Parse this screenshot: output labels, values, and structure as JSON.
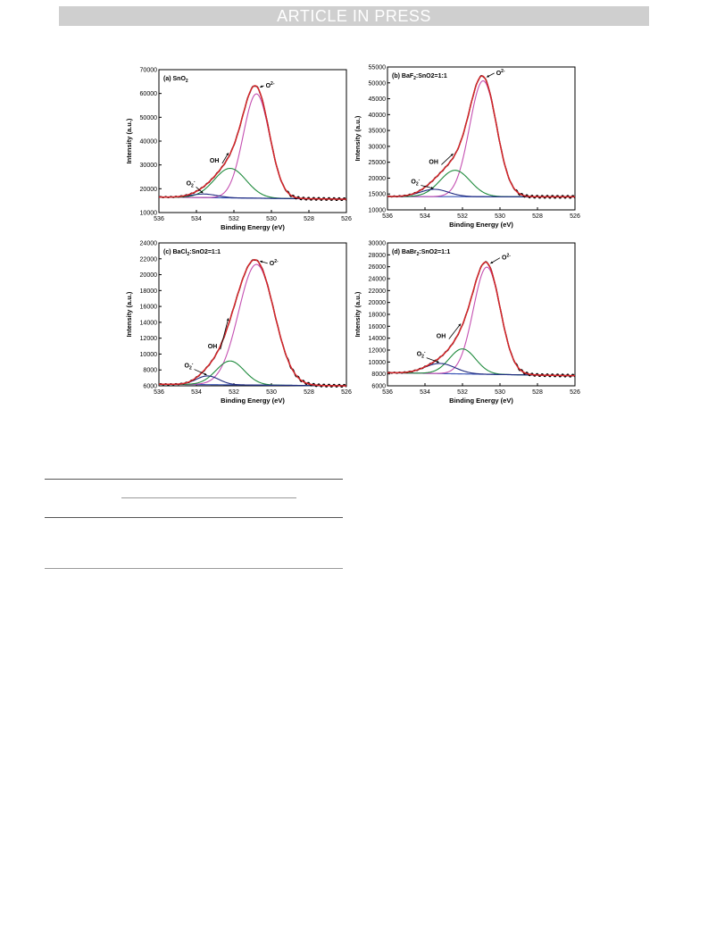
{
  "banner": {
    "text": "ARTICLE IN PRESS"
  },
  "colors": {
    "raw": "#000000",
    "fit": "#d7262a",
    "o2lattice": "#c44fb1",
    "oh": "#1e8a3c",
    "o2ads": "#1f2a80",
    "background": "#3a55b5"
  },
  "chart_data": [
    {
      "type": "line",
      "panel_label": "(a) SnO",
      "label_sub": "2",
      "label_tail": "",
      "xlabel": "Binding Energy (eV)",
      "ylabel": "Intensity (a.u.)",
      "xlim": [
        536,
        526
      ],
      "xticks": [
        536,
        534,
        532,
        530,
        528,
        526
      ],
      "ylim": [
        10000,
        70000
      ],
      "yticks": [
        10000,
        20000,
        30000,
        40000,
        50000,
        60000,
        70000
      ],
      "baseline": [
        16500,
        15600
      ],
      "peaks": [
        {
          "name": "O2-",
          "center": 530.8,
          "height": 43800,
          "sigma": 0.7
        },
        {
          "name": "OH",
          "center": 532.2,
          "height": 12400,
          "sigma": 0.85
        },
        {
          "name": "O2-ads",
          "center": 533.6,
          "height": 1500,
          "sigma": 0.7
        }
      ],
      "annotations": {
        "o2": {
          "text": "O",
          "sup": "2-",
          "x": 530.4,
          "y": 62500
        },
        "oh": {
          "text": "OH",
          "x": 533.1,
          "y": 31000
        },
        "ads": {
          "text": "O",
          "sub": "2",
          "sup": "-",
          "x": 534.4,
          "y": 21500
        }
      }
    },
    {
      "type": "line",
      "panel_label": "(b) BaF",
      "label_sub": "2",
      "label_tail": ":SnO2=1:1",
      "xlabel": "Binding Energy (eV)",
      "ylabel": "Intensity (a.u.)",
      "xlim": [
        536,
        526
      ],
      "xticks": [
        536,
        534,
        532,
        530,
        528,
        526
      ],
      "ylim": [
        10000,
        55000
      ],
      "yticks": [
        10000,
        15000,
        20000,
        25000,
        30000,
        35000,
        40000,
        45000,
        50000,
        55000
      ],
      "baseline": [
        14200,
        14100
      ],
      "peaks": [
        {
          "name": "O2-",
          "center": 530.9,
          "height": 36500,
          "sigma": 0.72
        },
        {
          "name": "OH",
          "center": 532.4,
          "height": 8300,
          "sigma": 0.8
        },
        {
          "name": "O2-ads",
          "center": 533.5,
          "height": 2300,
          "sigma": 0.75
        }
      ],
      "annotations": {
        "o2": {
          "text": "O",
          "sup": "2-",
          "x": 530.3,
          "y": 52500
        },
        "oh": {
          "text": "OH",
          "x": 533.6,
          "y": 24500
        },
        "ads": {
          "text": "O",
          "sub": "2",
          "sup": "-",
          "x": 534.6,
          "y": 18300
        }
      }
    },
    {
      "type": "line",
      "panel_label": "(c) BaCl",
      "label_sub": "2",
      "label_tail": ":SnO2=1:1",
      "xlabel": "Binding Energy (eV)",
      "ylabel": "Intensity (a.u.)",
      "xlim": [
        536,
        526
      ],
      "xticks": [
        536,
        534,
        532,
        530,
        528,
        526
      ],
      "ylim": [
        6000,
        24000
      ],
      "yticks": [
        6000,
        8000,
        10000,
        12000,
        14000,
        16000,
        18000,
        20000,
        22000,
        24000
      ],
      "baseline": [
        6200,
        6000
      ],
      "peaks": [
        {
          "name": "O2-",
          "center": 530.8,
          "height": 15200,
          "sigma": 0.95
        },
        {
          "name": "OH",
          "center": 532.2,
          "height": 3000,
          "sigma": 0.75
        },
        {
          "name": "O2-ads",
          "center": 533.4,
          "height": 1100,
          "sigma": 0.6
        }
      ],
      "annotations": {
        "o2": {
          "text": "O",
          "sup": "2-",
          "x": 530.2,
          "y": 21200
        },
        "oh": {
          "text": "OH",
          "x": 533.2,
          "y": 10700
        },
        "ads": {
          "text": "O",
          "sub": "2",
          "sup": "-",
          "x": 534.5,
          "y": 8300
        }
      }
    },
    {
      "type": "line",
      "panel_label": "(d) BaBr",
      "label_sub": "2",
      "label_tail": ":SnO2=1:1",
      "xlabel": "Binding Energy (eV)",
      "ylabel": "Intensity (a.u.)",
      "xlim": [
        536,
        526
      ],
      "xticks": [
        536,
        534,
        532,
        530,
        528,
        526
      ],
      "ylim": [
        6000,
        30000
      ],
      "yticks": [
        6000,
        8000,
        10000,
        12000,
        14000,
        16000,
        18000,
        20000,
        22000,
        24000,
        26000,
        28000,
        30000
      ],
      "baseline": [
        8200,
        7700
      ],
      "peaks": [
        {
          "name": "O2-",
          "center": 530.7,
          "height": 18000,
          "sigma": 0.72
        },
        {
          "name": "OH",
          "center": 532.0,
          "height": 4200,
          "sigma": 0.7
        },
        {
          "name": "O2-ads",
          "center": 533.2,
          "height": 1700,
          "sigma": 0.8
        }
      ],
      "annotations": {
        "o2": {
          "text": "O",
          "sup": "2-",
          "x": 530.0,
          "y": 27200
        },
        "oh": {
          "text": "OH",
          "x": 533.2,
          "y": 14000
        },
        "ads": {
          "text": "O",
          "sub": "2",
          "sup": "-",
          "x": 534.3,
          "y": 11000
        }
      }
    }
  ]
}
